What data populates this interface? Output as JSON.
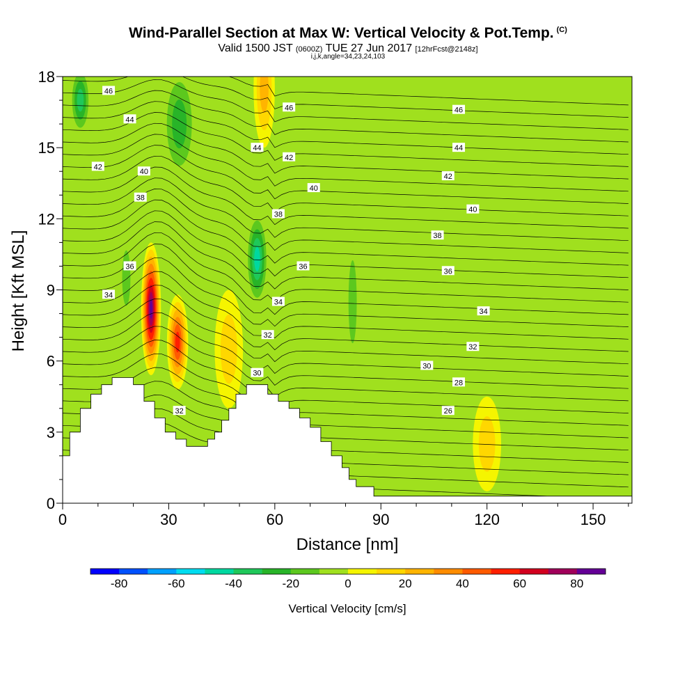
{
  "header": {
    "title": "Wind-Parallel Section at Max W: Vertical Velocity & Pot.Temp.",
    "title_mark": "(C)",
    "valid_prefix": "Valid 1500 JST",
    "valid_utc": "(0600Z)",
    "valid_date": "TUE 27 Jun 2017",
    "forecast": "[12hrFcst@2148z]",
    "indices": "i,j,k,angle=34,23,24,103"
  },
  "chart_data": {
    "type": "heatmap",
    "xlabel": "Distance [nm]",
    "ylabel": "Height [Kft MSL]",
    "xlim": [
      0,
      161
    ],
    "ylim": [
      0,
      18
    ],
    "xticks": [
      0,
      30,
      60,
      90,
      120,
      150
    ],
    "yticks": [
      0,
      3,
      6,
      9,
      12,
      15,
      18
    ],
    "colorbar": {
      "title": "Vertical Velocity [cm/s]",
      "range": [
        -90,
        90
      ],
      "step": 10,
      "tick_values": [
        -80,
        -60,
        -40,
        -20,
        0,
        20,
        40,
        60,
        80
      ],
      "colors": [
        "#0000ff",
        "#0050ff",
        "#00a0ff",
        "#00dcf0",
        "#00d8a0",
        "#1fc85a",
        "#28b428",
        "#5cc81e",
        "#a0e01e",
        "#f5f500",
        "#ffd700",
        "#ffb400",
        "#ff8c00",
        "#ff5a00",
        "#ff1e00",
        "#d2001e",
        "#a0005a",
        "#640096"
      ]
    },
    "terrain": [
      [
        0,
        2
      ],
      [
        2,
        2
      ],
      [
        2,
        3
      ],
      [
        5,
        3
      ],
      [
        5,
        4
      ],
      [
        8,
        4
      ],
      [
        8,
        4.6
      ],
      [
        11,
        4.6
      ],
      [
        11,
        5
      ],
      [
        14,
        5
      ],
      [
        14,
        5.3
      ],
      [
        20,
        5.3
      ],
      [
        20,
        5
      ],
      [
        23,
        5
      ],
      [
        23,
        4.3
      ],
      [
        26,
        4.3
      ],
      [
        26,
        3.6
      ],
      [
        29,
        3.6
      ],
      [
        29,
        3
      ],
      [
        32,
        3
      ],
      [
        32,
        2.7
      ],
      [
        35,
        2.7
      ],
      [
        35,
        2.4
      ],
      [
        41,
        2.4
      ],
      [
        41,
        2.7
      ],
      [
        43,
        2.7
      ],
      [
        43,
        3
      ],
      [
        45,
        3
      ],
      [
        45,
        3.5
      ],
      [
        47,
        3.5
      ],
      [
        47,
        4
      ],
      [
        49,
        4
      ],
      [
        49,
        4.6
      ],
      [
        52,
        4.6
      ],
      [
        52,
        5
      ],
      [
        58,
        5
      ],
      [
        58,
        4.6
      ],
      [
        61,
        4.6
      ],
      [
        61,
        4.3
      ],
      [
        64,
        4.3
      ],
      [
        64,
        4
      ],
      [
        67,
        4
      ],
      [
        67,
        3.6
      ],
      [
        70,
        3.6
      ],
      [
        70,
        3.2
      ],
      [
        73,
        3.2
      ],
      [
        73,
        2.6
      ],
      [
        76,
        2.6
      ],
      [
        76,
        2
      ],
      [
        79,
        2
      ],
      [
        79,
        1.5
      ],
      [
        81,
        1.5
      ],
      [
        81,
        1
      ],
      [
        83,
        1
      ],
      [
        83,
        0.7
      ],
      [
        88,
        0.7
      ],
      [
        88,
        0.3
      ],
      [
        161,
        0.3
      ]
    ],
    "cells": [
      {
        "x": 25,
        "y": 8.2,
        "rx": 2.8,
        "ry": 2.8,
        "w": 85
      },
      {
        "x": 32.5,
        "y": 6.8,
        "rx": 3.0,
        "ry": 2.0,
        "w": 60
      },
      {
        "x": 55,
        "y": 10.3,
        "rx": 3.2,
        "ry": 2.0,
        "w": -45
      },
      {
        "x": 5,
        "y": 17,
        "rx": 3.0,
        "ry": 1.5,
        "w": -35
      },
      {
        "x": 33,
        "y": 16,
        "rx": 5.0,
        "ry": 2.5,
        "w": -25
      },
      {
        "x": 57,
        "y": 17.5,
        "rx": 3.0,
        "ry": 2.5,
        "w": 25
      },
      {
        "x": 82,
        "y": 8.5,
        "rx": 2.0,
        "ry": 3.0,
        "w": -20
      },
      {
        "x": 120,
        "y": 2.5,
        "rx": 4.0,
        "ry": 2.0,
        "w": 15
      },
      {
        "x": 47,
        "y": 6.5,
        "rx": 4.0,
        "ry": 2.5,
        "w": 20
      },
      {
        "x": 18,
        "y": 9.5,
        "rx": 2.0,
        "ry": 2.0,
        "w": -15
      }
    ],
    "contour_labels": [
      {
        "text": "46",
        "x": 13,
        "y": 17.4
      },
      {
        "text": "44",
        "x": 19,
        "y": 16.2
      },
      {
        "text": "42",
        "x": 10,
        "y": 14.2
      },
      {
        "text": "40",
        "x": 23,
        "y": 14.0
      },
      {
        "text": "38",
        "x": 22,
        "y": 12.9
      },
      {
        "text": "36",
        "x": 19,
        "y": 10.0
      },
      {
        "text": "34",
        "x": 13,
        "y": 8.8
      },
      {
        "text": "46",
        "x": 64,
        "y": 16.7
      },
      {
        "text": "44",
        "x": 55,
        "y": 15.0
      },
      {
        "text": "42",
        "x": 64,
        "y": 14.6
      },
      {
        "text": "40",
        "x": 71,
        "y": 13.3
      },
      {
        "text": "38",
        "x": 61,
        "y": 12.2
      },
      {
        "text": "36",
        "x": 68,
        "y": 10.0
      },
      {
        "text": "34",
        "x": 61,
        "y": 8.5
      },
      {
        "text": "32",
        "x": 58,
        "y": 7.1
      },
      {
        "text": "30",
        "x": 55,
        "y": 5.5
      },
      {
        "text": "32",
        "x": 33,
        "y": 3.9
      },
      {
        "text": "46",
        "x": 112,
        "y": 16.6
      },
      {
        "text": "44",
        "x": 112,
        "y": 15.0
      },
      {
        "text": "42",
        "x": 109,
        "y": 13.8
      },
      {
        "text": "40",
        "x": 116,
        "y": 12.4
      },
      {
        "text": "38",
        "x": 106,
        "y": 11.3
      },
      {
        "text": "36",
        "x": 109,
        "y": 9.8
      },
      {
        "text": "34",
        "x": 119,
        "y": 8.1
      },
      {
        "text": "32",
        "x": 116,
        "y": 6.6
      },
      {
        "text": "30",
        "x": 103,
        "y": 5.8
      },
      {
        "text": "28",
        "x": 112,
        "y": 5.1
      },
      {
        "text": "26",
        "x": 109,
        "y": 3.9
      }
    ]
  }
}
